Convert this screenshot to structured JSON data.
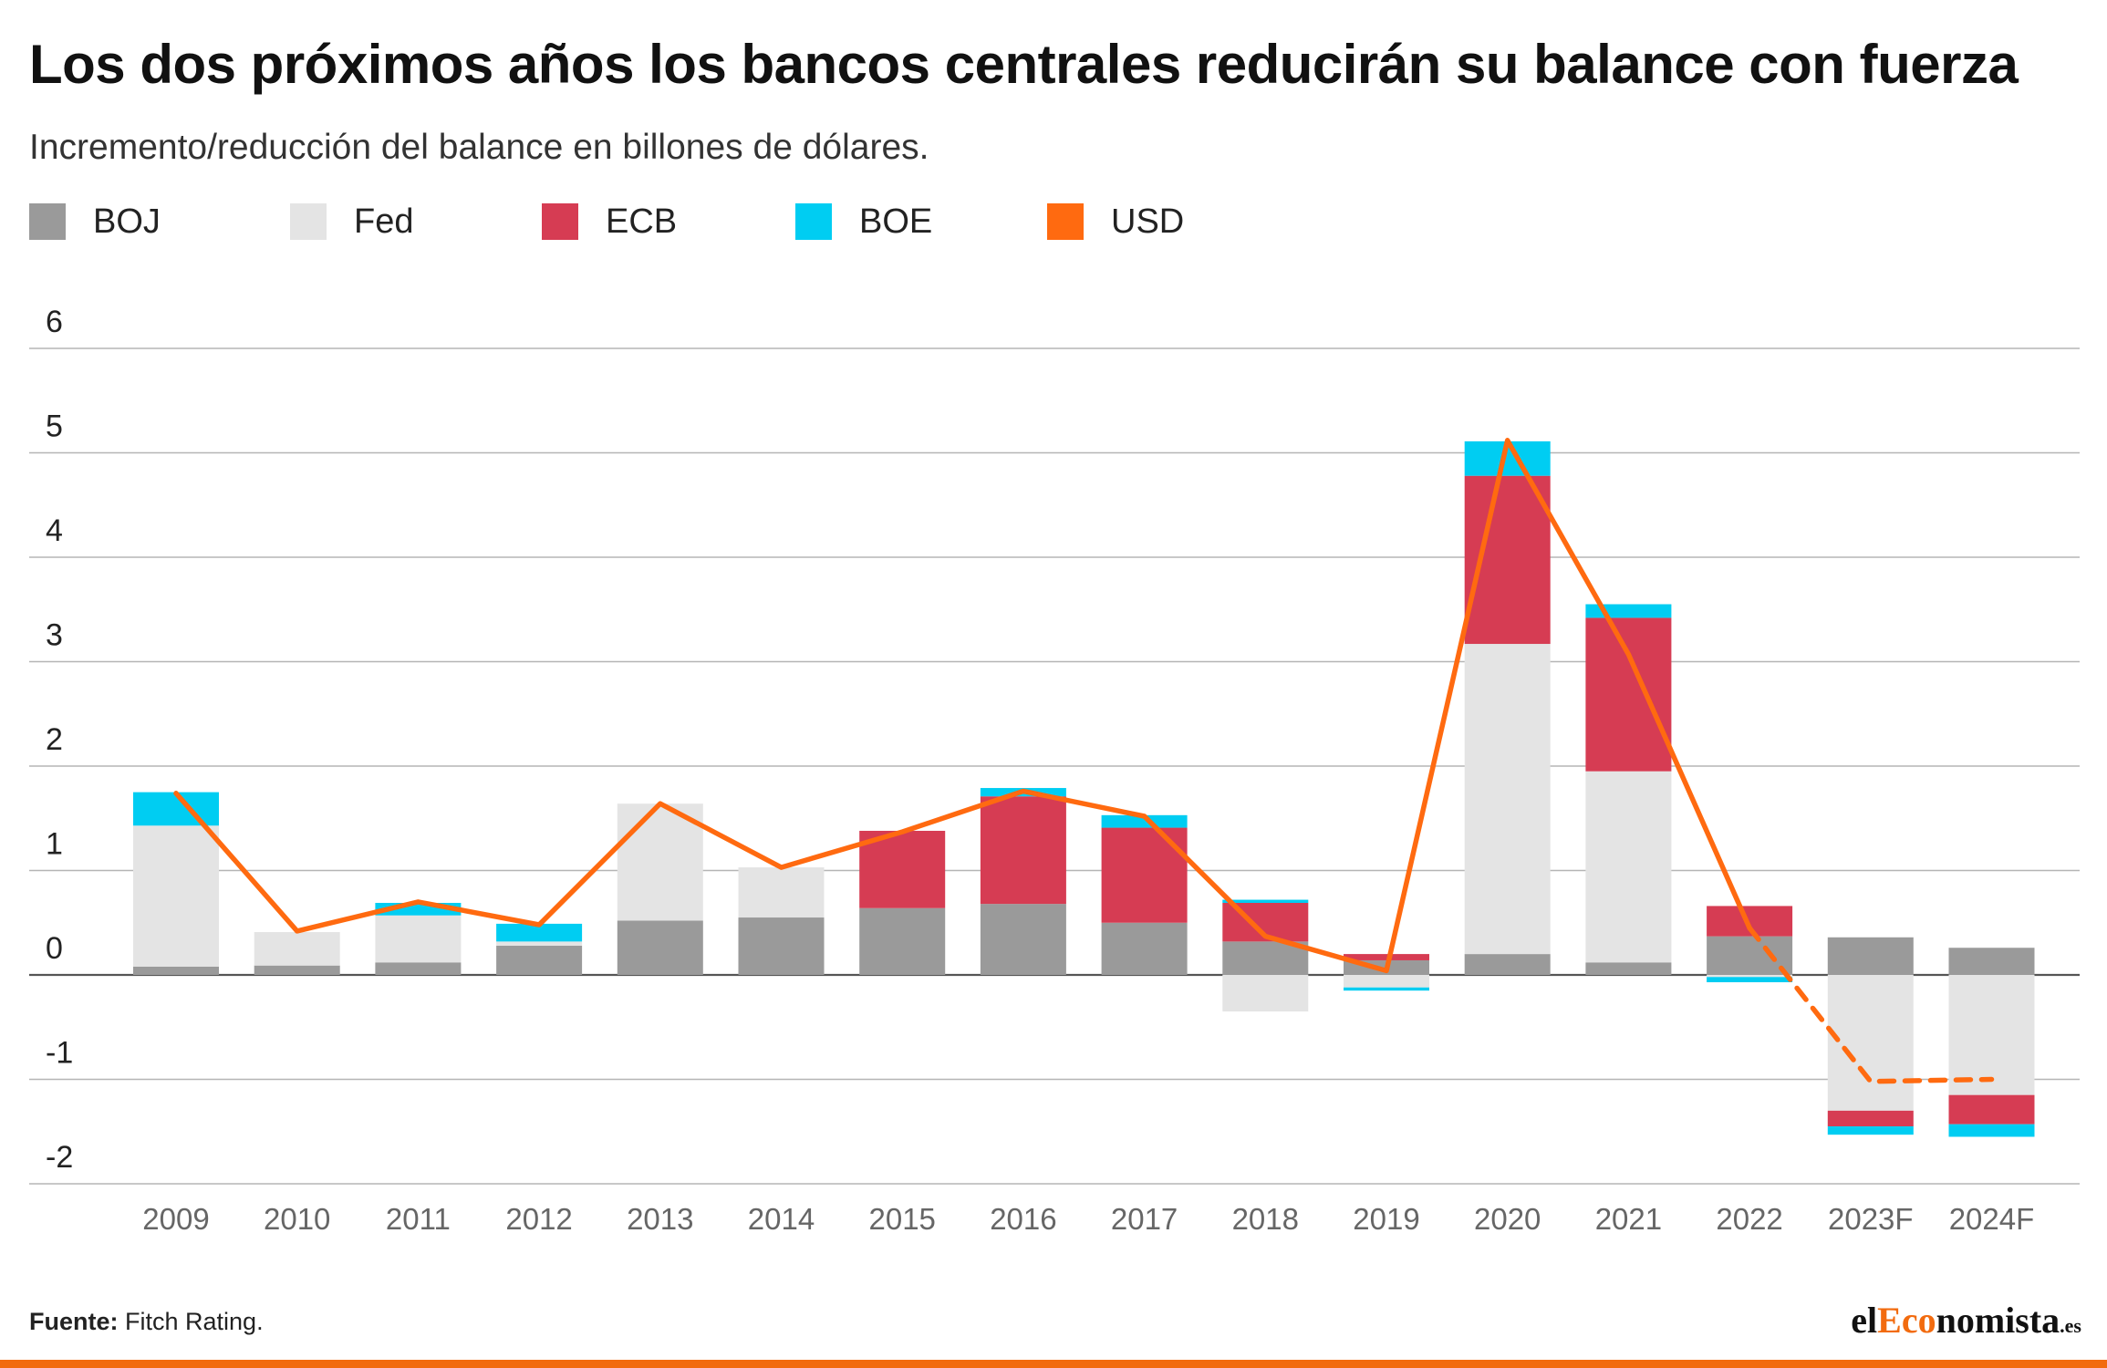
{
  "header": {
    "title": "Los dos próximos años los bancos centrales reducirán su balance con fuerza",
    "subtitle": "Incremento/reducción del balance en billones de dólares."
  },
  "legend": [
    {
      "label": "BOJ",
      "color": "#9a9a9a",
      "type": "bar"
    },
    {
      "label": "Fed",
      "color": "#e4e4e4",
      "type": "bar"
    },
    {
      "label": "ECB",
      "color": "#d63c53",
      "type": "bar"
    },
    {
      "label": "BOE",
      "color": "#00cdf2",
      "type": "bar"
    },
    {
      "label": "USD",
      "color": "#ff6a10",
      "type": "line"
    }
  ],
  "footer": {
    "source_label": "Fuente:",
    "source_text": "Fitch Rating.",
    "brand_prefix": "el",
    "brand_accent": "Eco",
    "brand_suffix": "nomista",
    "brand_tld": ".es",
    "accent_color": "#f26b0f"
  },
  "chart_data": {
    "type": "bar",
    "stacked": true,
    "grid": true,
    "categories": [
      "2009",
      "2010",
      "2011",
      "2012",
      "2013",
      "2014",
      "2015",
      "2016",
      "2017",
      "2018",
      "2019",
      "2020",
      "2021",
      "2022",
      "2023F",
      "2024F"
    ],
    "ylim": [
      -2,
      6
    ],
    "yticks": [
      6,
      5,
      4,
      3,
      2,
      1,
      0,
      -1,
      -2
    ],
    "series": [
      {
        "name": "BOJ",
        "color": "#9a9a9a",
        "values": [
          0.08,
          0.09,
          0.12,
          0.28,
          0.52,
          0.55,
          0.64,
          0.68,
          0.5,
          0.32,
          0.14,
          0.2,
          0.12,
          0.37,
          0.36,
          0.26
        ]
      },
      {
        "name": "Fed",
        "color": "#e4e4e4",
        "values": [
          1.35,
          0.32,
          0.45,
          0.04,
          1.12,
          0.48,
          0.0,
          0.0,
          0.0,
          -0.35,
          -0.12,
          2.97,
          1.83,
          -0.02,
          -1.3,
          -1.15
        ]
      },
      {
        "name": "ECB",
        "color": "#d63c53",
        "values": [
          0.0,
          0.0,
          0.0,
          0.0,
          0.0,
          0.0,
          0.74,
          1.03,
          0.91,
          0.37,
          0.06,
          1.61,
          1.47,
          0.29,
          -0.15,
          -0.28
        ]
      },
      {
        "name": "BOE",
        "color": "#00cdf2",
        "values": [
          0.32,
          0.0,
          0.12,
          0.17,
          0.0,
          0.0,
          0.0,
          0.08,
          0.12,
          0.03,
          -0.03,
          0.33,
          0.13,
          -0.05,
          -0.08,
          -0.12
        ]
      }
    ],
    "line": {
      "name": "USD",
      "color": "#ff6a10",
      "values": [
        1.74,
        0.42,
        0.7,
        0.48,
        1.64,
        1.03,
        1.37,
        1.76,
        1.52,
        0.37,
        0.04,
        5.12,
        3.07,
        0.45,
        -1.02,
        -1.0
      ],
      "dashed_from_index": 13
    }
  }
}
